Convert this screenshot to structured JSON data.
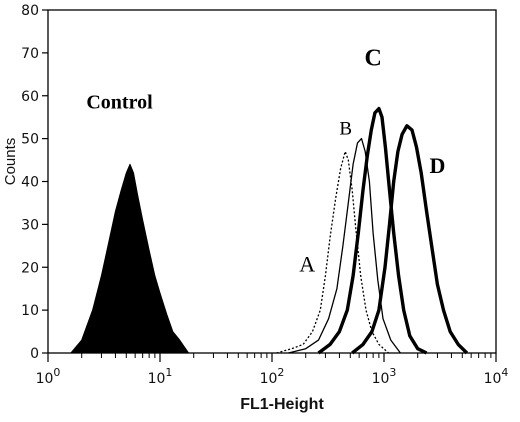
{
  "chart_data": {
    "type": "line",
    "title": "",
    "xlabel": "FL1-Height",
    "ylabel": "Counts",
    "xscale": "log",
    "xlim": [
      1,
      10000
    ],
    "ylim": [
      0,
      80
    ],
    "grid": false,
    "legend": "none",
    "x_ticks": [
      {
        "value": 1,
        "base": "10",
        "exp": "0"
      },
      {
        "value": 10,
        "base": "10",
        "exp": "1"
      },
      {
        "value": 100,
        "base": "10",
        "exp": "2"
      },
      {
        "value": 1000,
        "base": "10",
        "exp": "3"
      },
      {
        "value": 10000,
        "base": "10",
        "exp": "4"
      }
    ],
    "y_ticks": [
      0,
      10,
      20,
      30,
      40,
      50,
      60,
      70,
      80
    ],
    "series": [
      {
        "name": "Control",
        "style": "filled",
        "color": "#000000",
        "points": [
          [
            1.6,
            0
          ],
          [
            2.0,
            3
          ],
          [
            2.5,
            10
          ],
          [
            3.0,
            18
          ],
          [
            3.5,
            26
          ],
          [
            4.0,
            33
          ],
          [
            4.5,
            38
          ],
          [
            5.0,
            42
          ],
          [
            5.4,
            44
          ],
          [
            5.8,
            42
          ],
          [
            6.3,
            37
          ],
          [
            7.0,
            31
          ],
          [
            8.0,
            24
          ],
          [
            9.0,
            18
          ],
          [
            10.0,
            14
          ],
          [
            11.5,
            9
          ],
          [
            13.0,
            5
          ],
          [
            15.0,
            3
          ],
          [
            18.0,
            0
          ]
        ]
      },
      {
        "name": "A",
        "style": "dotted",
        "color": "#000000",
        "points": [
          [
            110,
            0
          ],
          [
            150,
            1
          ],
          [
            190,
            2
          ],
          [
            230,
            5
          ],
          [
            270,
            10
          ],
          [
            300,
            18
          ],
          [
            330,
            27
          ],
          [
            370,
            36
          ],
          [
            410,
            43
          ],
          [
            450,
            47
          ],
          [
            480,
            45
          ],
          [
            520,
            38
          ],
          [
            560,
            29
          ],
          [
            620,
            18
          ],
          [
            690,
            10
          ],
          [
            780,
            5
          ],
          [
            900,
            2
          ],
          [
            1100,
            0
          ]
        ]
      },
      {
        "name": "B",
        "style": "thin",
        "color": "#000000",
        "points": [
          [
            140,
            0
          ],
          [
            200,
            1
          ],
          [
            260,
            3
          ],
          [
            320,
            8
          ],
          [
            380,
            15
          ],
          [
            430,
            25
          ],
          [
            480,
            35
          ],
          [
            530,
            44
          ],
          [
            580,
            49
          ],
          [
            630,
            50
          ],
          [
            680,
            47
          ],
          [
            740,
            40
          ],
          [
            800,
            28
          ],
          [
            880,
            17
          ],
          [
            980,
            8
          ],
          [
            1150,
            3
          ],
          [
            1400,
            0
          ]
        ]
      },
      {
        "name": "C",
        "style": "thick",
        "color": "#000000",
        "points": [
          [
            260,
            0
          ],
          [
            330,
            2
          ],
          [
            400,
            5
          ],
          [
            470,
            10
          ],
          [
            530,
            18
          ],
          [
            590,
            28
          ],
          [
            650,
            38
          ],
          [
            710,
            46
          ],
          [
            770,
            52
          ],
          [
            830,
            56
          ],
          [
            900,
            57
          ],
          [
            960,
            55
          ],
          [
            1030,
            48
          ],
          [
            1120,
            38
          ],
          [
            1220,
            28
          ],
          [
            1350,
            18
          ],
          [
            1500,
            10
          ],
          [
            1700,
            4
          ],
          [
            2000,
            1
          ],
          [
            2400,
            0
          ]
        ]
      },
      {
        "name": "D",
        "style": "thick",
        "color": "#000000",
        "points": [
          [
            520,
            0
          ],
          [
            650,
            2
          ],
          [
            780,
            5
          ],
          [
            900,
            10
          ],
          [
            1020,
            20
          ],
          [
            1120,
            30
          ],
          [
            1220,
            40
          ],
          [
            1330,
            47
          ],
          [
            1450,
            51
          ],
          [
            1600,
            53
          ],
          [
            1780,
            52
          ],
          [
            1950,
            48
          ],
          [
            2150,
            42
          ],
          [
            2400,
            33
          ],
          [
            2700,
            24
          ],
          [
            3000,
            16
          ],
          [
            3400,
            10
          ],
          [
            3900,
            5
          ],
          [
            4600,
            2
          ],
          [
            5500,
            0
          ]
        ]
      }
    ],
    "annotations": [
      {
        "text": "Control",
        "series": "Control"
      },
      {
        "text": "A",
        "series": "A"
      },
      {
        "text": "B",
        "series": "B"
      },
      {
        "text": "C",
        "series": "C"
      },
      {
        "text": "D",
        "series": "D"
      }
    ]
  }
}
